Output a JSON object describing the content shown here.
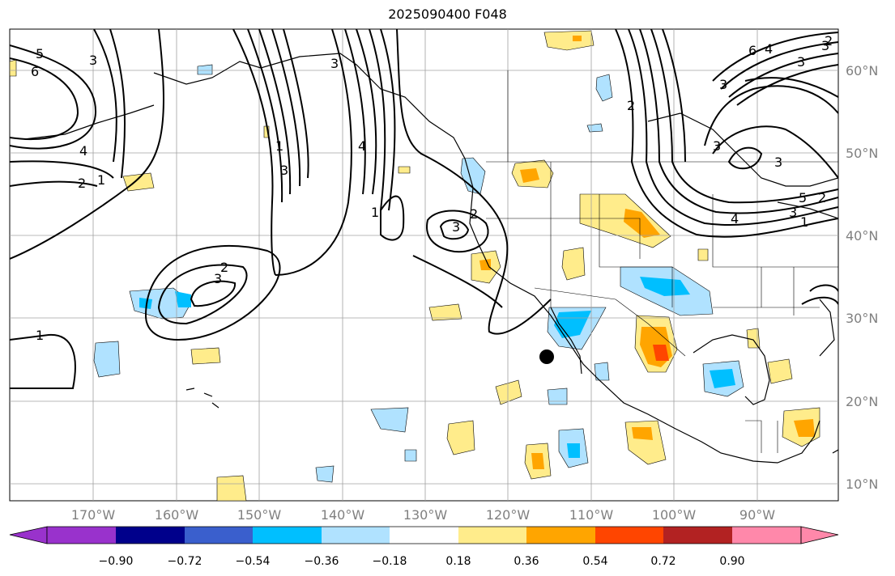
{
  "title": "2025090400 F048",
  "map": {
    "lon_ticks": [
      "170°W",
      "160°W",
      "150°W",
      "140°W",
      "130°W",
      "120°W",
      "110°W",
      "100°W",
      "90°W"
    ],
    "lat_ticks": [
      "60°N",
      "50°N",
      "40°N",
      "30°N",
      "20°N",
      "10°N"
    ],
    "contour_labels": [
      "5",
      "6",
      "3",
      "4",
      "2",
      "1",
      "1",
      "1",
      "3",
      "3",
      "4",
      "1",
      "3",
      "2",
      "2",
      "3",
      "2",
      "3",
      "3",
      "6",
      "4",
      "3",
      "2",
      "3",
      "2",
      "3",
      "5",
      "4",
      "3",
      "1"
    ],
    "marker": "black-dot"
  },
  "colorbar": {
    "ticks": [
      "−0.90",
      "−0.72",
      "−0.54",
      "−0.36",
      "−0.18",
      "0.18",
      "0.36",
      "0.54",
      "0.72",
      "0.90"
    ],
    "colors": [
      "#9932cc",
      "#00008b",
      "#3a5fcd",
      "#00bfff",
      "#b0e2ff",
      "#ffffff",
      "#ffec8b",
      "#ffa500",
      "#ff4500",
      "#b22222",
      "#ff88aa"
    ]
  }
}
